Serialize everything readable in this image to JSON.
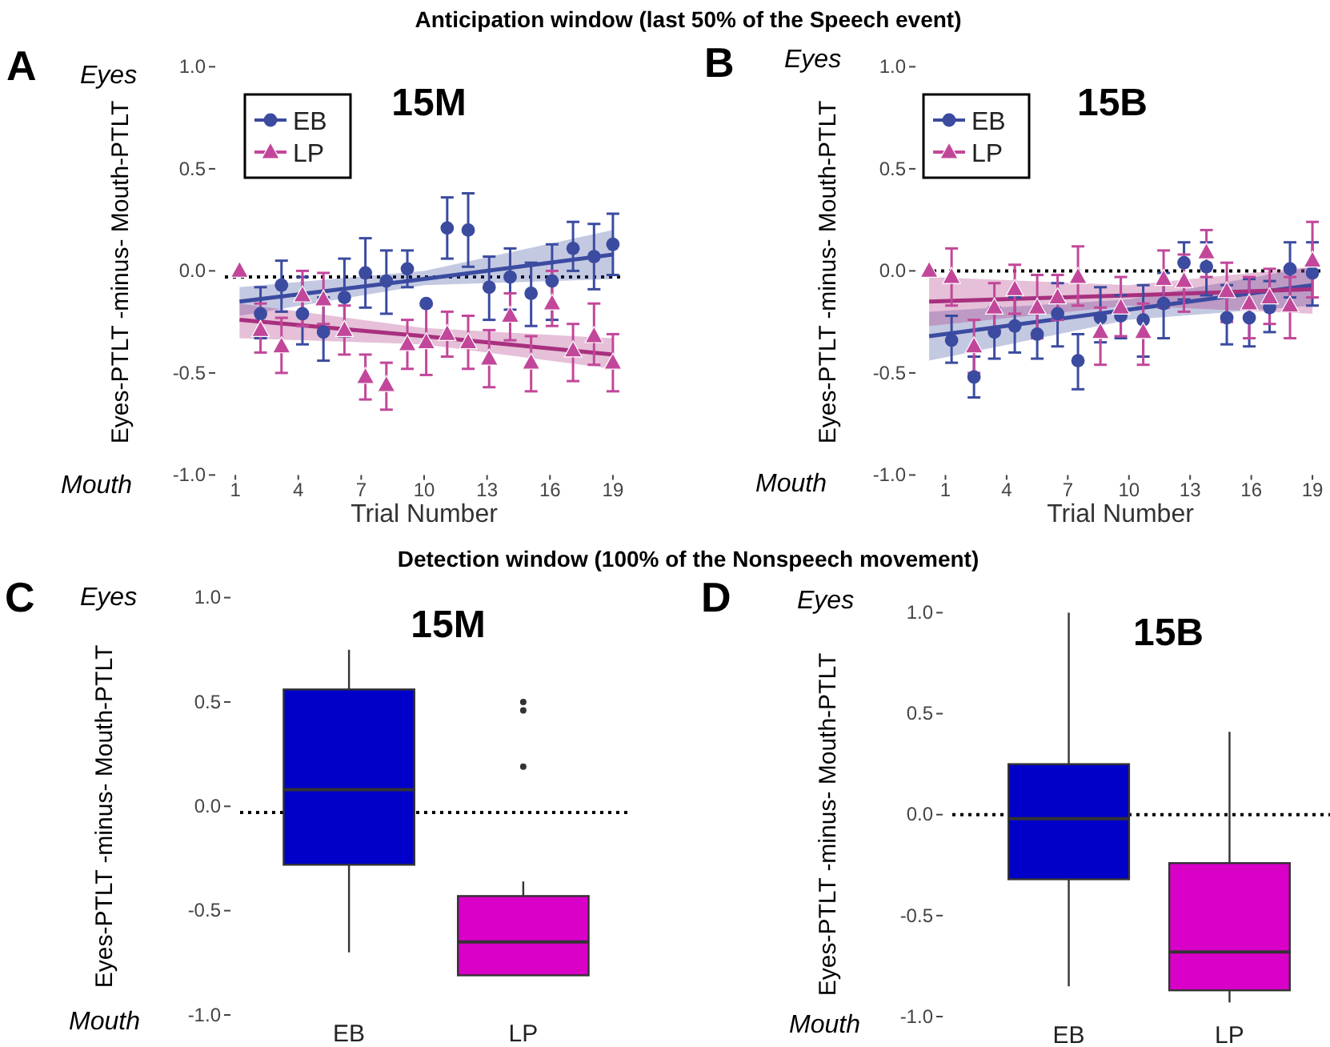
{
  "chart_data": [
    {
      "type": "scatter",
      "title": "15M",
      "xlabel": "Trial Number",
      "ylabel": "Eyes-PTLT -minus- Mouth-PTLT",
      "annotations": [
        "Anticipation window (last 50% of the Speech event)",
        "A",
        "Eyes",
        "Mouth"
      ],
      "xlim": [
        0.5,
        19.5
      ],
      "xticks": [
        1,
        4,
        7,
        10,
        13,
        16,
        19
      ],
      "ylim": [
        -1,
        1
      ],
      "yticks": [
        {
          "value": 1,
          "label": "1.0"
        },
        {
          "value": 0.5,
          "label": "0.5"
        },
        {
          "value": 0,
          "label": "0.0"
        },
        {
          "value": -0.5,
          "label": "-0.5"
        },
        {
          "value": -1,
          "label": "-1.0"
        }
      ],
      "legend": "top left",
      "ref_lines": [
        {
          "axis": "y",
          "value": -0.03,
          "color": "#000000",
          "line_style": "dotted"
        }
      ],
      "series": [
        {
          "name": "EB",
          "color": "#3b4ba0",
          "marker": "circle",
          "x": [
            2.2,
            3.2,
            4.2,
            5.2,
            6.2,
            7.2,
            8.2,
            9.2,
            10.1,
            11.1,
            12.1,
            13.1,
            14.1,
            15.1,
            16.1,
            17.1,
            18.1,
            19.0
          ],
          "values": [
            -0.21,
            -0.07,
            -0.21,
            -0.3,
            -0.13,
            -0.01,
            -0.05,
            0.01,
            -0.16,
            0.21,
            0.2,
            -0.08,
            -0.03,
            -0.11,
            -0.05,
            0.11,
            0.07,
            0.13
          ],
          "errors": [
            [
              -0.33,
              -0.08
            ],
            [
              -0.2,
              0.05
            ],
            [
              -0.36,
              -0.03
            ],
            [
              -0.44,
              -0.13
            ],
            [
              -0.32,
              0.06
            ],
            [
              -0.18,
              0.16
            ],
            [
              -0.21,
              0.1
            ],
            [
              -0.08,
              0.1
            ],
            null,
            [
              0.06,
              0.36
            ],
            [
              0.02,
              0.38
            ],
            [
              -0.24,
              0.07
            ],
            [
              -0.19,
              0.11
            ],
            [
              -0.27,
              0.04
            ],
            [
              -0.24,
              0.13
            ],
            [
              0.0,
              0.24
            ],
            [
              -0.09,
              0.23
            ],
            [
              -0.02,
              0.28
            ]
          ]
        },
        {
          "name": "LP",
          "color": "#c2479a",
          "marker": "triangle",
          "x": [
            1.2,
            2.2,
            3.2,
            4.2,
            5.2,
            6.2,
            7.2,
            8.2,
            9.2,
            10.1,
            11.1,
            12.1,
            13.1,
            14.1,
            15.1,
            16.1,
            17.1,
            18.1,
            19.0
          ],
          "values": [
            0.0,
            -0.29,
            -0.37,
            -0.12,
            -0.14,
            -0.29,
            -0.52,
            -0.56,
            -0.36,
            -0.35,
            -0.31,
            -0.35,
            -0.43,
            -0.22,
            -0.45,
            -0.16,
            -0.39,
            -0.32,
            -0.45
          ],
          "errors": [
            null,
            [
              -0.4,
              -0.16
            ],
            [
              -0.5,
              -0.23
            ],
            [
              -0.27,
              0.0
            ],
            [
              -0.26,
              -0.01
            ],
            [
              -0.41,
              -0.17
            ],
            [
              -0.63,
              -0.41
            ],
            [
              -0.68,
              -0.45
            ],
            [
              -0.48,
              -0.24
            ],
            [
              -0.51,
              -0.17
            ],
            [
              -0.42,
              -0.2
            ],
            [
              -0.48,
              -0.22
            ],
            [
              -0.57,
              -0.29
            ],
            [
              -0.34,
              -0.11
            ],
            [
              -0.59,
              -0.32
            ],
            [
              -0.27,
              0.0
            ],
            [
              -0.54,
              -0.26
            ],
            [
              -0.46,
              -0.16
            ],
            [
              -0.59,
              -0.31
            ]
          ]
        },
        {
          "type": "line",
          "color": "#3b4ba0",
          "x": [
            1.2,
            10,
            19.0
          ],
          "values": [
            -0.15,
            -0.04,
            0.08
          ],
          "lower": [
            -0.22,
            -0.07,
            -0.04
          ],
          "upper": [
            -0.08,
            0.0,
            0.2
          ]
        },
        {
          "type": "line",
          "color": "#a8307f",
          "x": [
            1.2,
            10,
            19.0
          ],
          "values": [
            -0.24,
            -0.32,
            -0.41
          ],
          "lower": [
            -0.33,
            -0.36,
            -0.48
          ],
          "upper": [
            -0.16,
            -0.28,
            -0.33
          ]
        }
      ]
    },
    {
      "type": "scatter",
      "title": "15B",
      "xlabel": "Trial Number",
      "ylabel": "Eyes-PTLT -minus- Mouth-PTLT",
      "annotations": [
        "B",
        "Eyes",
        "Mouth"
      ],
      "xlim": [
        0,
        19.5
      ],
      "xticks": [
        1,
        4,
        7,
        10,
        13,
        16,
        19
      ],
      "ylim": [
        -1,
        1
      ],
      "yticks": [
        {
          "value": 1,
          "label": "1.0"
        },
        {
          "value": 0.5,
          "label": "0.5"
        },
        {
          "value": 0,
          "label": "0.0"
        },
        {
          "value": -0.5,
          "label": "-0.5"
        },
        {
          "value": -1,
          "label": "-1.0"
        }
      ],
      "legend": "top left",
      "ref_lines": [
        {
          "axis": "y",
          "value": 0,
          "color": "#000000",
          "line_style": "dotted"
        }
      ],
      "series": [
        {
          "name": "EB",
          "color": "#3b4ba0",
          "marker": "circle",
          "x": [
            1.3,
            2.4,
            3.4,
            4.4,
            5.5,
            6.5,
            7.5,
            8.6,
            9.6,
            10.7,
            11.7,
            12.7,
            13.8,
            14.8,
            15.9,
            16.9,
            17.9,
            19.0
          ],
          "values": [
            -0.34,
            -0.52,
            -0.3,
            -0.27,
            -0.31,
            -0.21,
            -0.44,
            -0.23,
            -0.22,
            -0.24,
            -0.16,
            0.04,
            0.02,
            -0.23,
            -0.23,
            -0.18,
            0.01,
            -0.01
          ],
          "errors": [
            [
              -0.45,
              -0.22
            ],
            [
              -0.62,
              -0.42
            ],
            [
              -0.43,
              -0.18
            ],
            [
              -0.4,
              -0.13
            ],
            [
              -0.43,
              -0.19
            ],
            [
              -0.37,
              -0.06
            ],
            [
              -0.58,
              -0.31
            ],
            [
              -0.35,
              -0.08
            ],
            [
              -0.33,
              -0.12
            ],
            [
              -0.42,
              -0.07
            ],
            [
              -0.33,
              -0.01
            ],
            [
              -0.14,
              0.14
            ],
            [
              -0.12,
              0.14
            ],
            [
              -0.36,
              -0.07
            ],
            [
              -0.37,
              -0.04
            ],
            [
              -0.3,
              -0.05
            ],
            [
              -0.13,
              0.14
            ],
            [
              -0.17,
              0.14
            ]
          ]
        },
        {
          "name": "LP",
          "color": "#c2479a",
          "marker": "triangle",
          "x": [
            0.2,
            1.3,
            2.4,
            3.4,
            4.4,
            5.5,
            6.5,
            7.5,
            8.6,
            9.6,
            10.7,
            11.7,
            12.7,
            13.8,
            14.8,
            15.9,
            16.9,
            17.9,
            19.0
          ],
          "values": [
            0.0,
            -0.03,
            -0.37,
            -0.18,
            -0.09,
            -0.18,
            -0.13,
            -0.03,
            -0.3,
            -0.18,
            -0.3,
            -0.04,
            -0.05,
            0.09,
            -0.1,
            -0.16,
            -0.13,
            -0.17,
            0.05
          ],
          "errors": [
            null,
            [
              -0.17,
              0.11
            ],
            [
              -0.5,
              -0.24
            ],
            [
              -0.29,
              -0.06
            ],
            [
              -0.21,
              0.03
            ],
            [
              -0.33,
              -0.02
            ],
            [
              -0.24,
              -0.02
            ],
            [
              -0.17,
              0.12
            ],
            [
              -0.46,
              -0.18
            ],
            [
              -0.32,
              -0.03
            ],
            [
              -0.46,
              -0.16
            ],
            [
              -0.18,
              0.1
            ],
            [
              -0.2,
              0.08
            ],
            [
              -0.03,
              0.2
            ],
            [
              -0.25,
              0.04
            ],
            [
              -0.33,
              -0.03
            ],
            [
              -0.26,
              0.01
            ],
            [
              -0.33,
              -0.03
            ],
            [
              -0.13,
              0.24
            ]
          ]
        },
        {
          "type": "line",
          "color": "#3b4ba0",
          "x": [
            0.2,
            10,
            19.0
          ],
          "values": [
            -0.32,
            -0.19,
            -0.07
          ],
          "lower": [
            -0.44,
            -0.24,
            -0.17
          ],
          "upper": [
            -0.2,
            -0.14,
            0.02
          ]
        },
        {
          "type": "line",
          "color": "#a8307f",
          "x": [
            0.2,
            10,
            19.0
          ],
          "values": [
            -0.15,
            -0.12,
            -0.09
          ],
          "lower": [
            -0.27,
            -0.17,
            -0.21
          ],
          "upper": [
            -0.03,
            -0.07,
            0.02
          ]
        }
      ]
    },
    {
      "type": "box",
      "title": "15M",
      "ylabel": "Eyes-PTLT -minus- Mouth-PTLT",
      "annotations": [
        "Detection window (100% of the Nonspeech movement)",
        "C",
        "Eyes",
        "Mouth"
      ],
      "categories": [
        "EB",
        "LP"
      ],
      "colors": [
        "#0000c8",
        "#d900c8"
      ],
      "ylim": [
        -1,
        1
      ],
      "yticks": [
        {
          "value": 1,
          "label": "1.0"
        },
        {
          "value": 0.5,
          "label": "0.5"
        },
        {
          "value": 0,
          "label": "0.0"
        },
        {
          "value": -0.5,
          "label": "-0.5"
        },
        {
          "value": -1,
          "label": "-1.0"
        }
      ],
      "ref_lines": [
        {
          "axis": "y",
          "value": -0.03,
          "color": "#000000",
          "line_style": "dotted"
        }
      ],
      "boxes": [
        {
          "low": -0.7,
          "q1": -0.28,
          "median": 0.08,
          "q3": 0.56,
          "high": 0.75
        },
        {
          "low": -0.81,
          "q1": -0.81,
          "median": -0.65,
          "q3": -0.43,
          "high": -0.36,
          "outliers": [
            0.5,
            0.46,
            0.19
          ]
        }
      ]
    },
    {
      "type": "box",
      "title": "15B",
      "ylabel": "Eyes-PTLT -minus- Mouth-PTLT",
      "annotations": [
        "D",
        "Eyes",
        "Mouth"
      ],
      "categories": [
        "EB",
        "LP"
      ],
      "colors": [
        "#0000c8",
        "#d900c8"
      ],
      "ylim": [
        -1,
        1
      ],
      "yticks": [
        {
          "value": 1,
          "label": "1.0"
        },
        {
          "value": 0.5,
          "label": "0.5"
        },
        {
          "value": 0,
          "label": "0.0"
        },
        {
          "value": -0.5,
          "label": "-0.5"
        },
        {
          "value": -1,
          "label": "-1.0"
        }
      ],
      "ref_lines": [
        {
          "axis": "y",
          "value": 0,
          "color": "#000000",
          "line_style": "dotted"
        }
      ],
      "boxes": [
        {
          "low": -0.85,
          "q1": -0.32,
          "median": -0.02,
          "q3": 0.25,
          "high": 1.0
        },
        {
          "low": -0.93,
          "q1": -0.87,
          "median": -0.68,
          "q3": -0.24,
          "high": 0.41
        }
      ]
    }
  ]
}
